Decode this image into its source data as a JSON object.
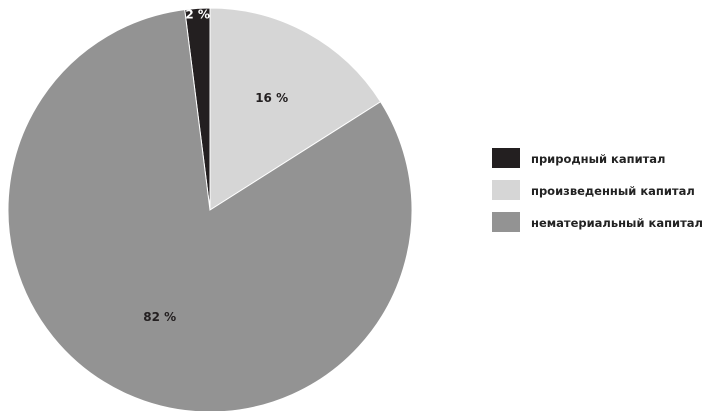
{
  "chart_data": {
    "type": "pie",
    "start_angle_deg": 0,
    "direction": "clockwise",
    "slices": [
      {
        "label": "природный капитал",
        "value": 2,
        "display": "2 %",
        "color": "#231f20",
        "label_color": "#ffffff"
      },
      {
        "label": "произведенный капитал",
        "value": 16,
        "display": "16 %",
        "color": "#d6d6d6",
        "label_color": "#231f20"
      },
      {
        "label": "нематериальный капитал",
        "value": 82,
        "display": "82 %",
        "color": "#939393",
        "label_color": "#231f20"
      }
    ],
    "legend_position": "right"
  }
}
